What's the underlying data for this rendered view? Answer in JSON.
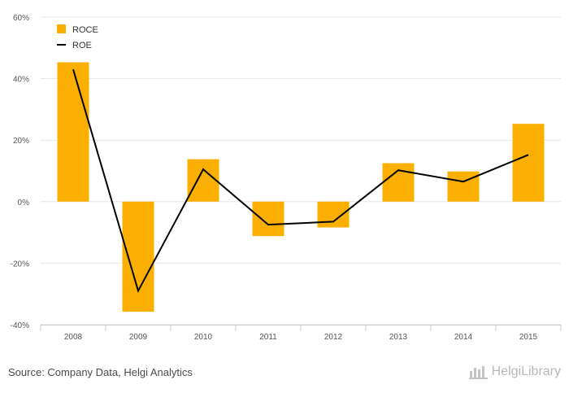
{
  "chart_data": {
    "type": "bar",
    "categories": [
      "2008",
      "2009",
      "2010",
      "2011",
      "2012",
      "2013",
      "2014",
      "2015"
    ],
    "series": [
      {
        "name": "ROCE",
        "type": "bar",
        "color": "#FBAF00",
        "values": [
          45.3,
          -35.8,
          13.8,
          -11.2,
          -8.4,
          12.5,
          9.8,
          25.3
        ]
      },
      {
        "name": "ROE",
        "type": "line",
        "color": "#000000",
        "values": [
          43.0,
          -29.0,
          10.5,
          -7.5,
          -6.5,
          10.2,
          6.5,
          15.2
        ]
      }
    ],
    "ylim": [
      -40,
      60
    ],
    "yticks": [
      -40,
      -20,
      0,
      20,
      40,
      60
    ],
    "ytick_labels": [
      "-40%",
      "-20%",
      "0%",
      "20%",
      "40%",
      "60%"
    ],
    "xlabel": "",
    "ylabel": "",
    "grid": "horizontal",
    "legend_position": "top-left"
  },
  "footer": {
    "source": "Source: Company Data, Helgi Analytics",
    "brand": "HelgiLibrary"
  }
}
